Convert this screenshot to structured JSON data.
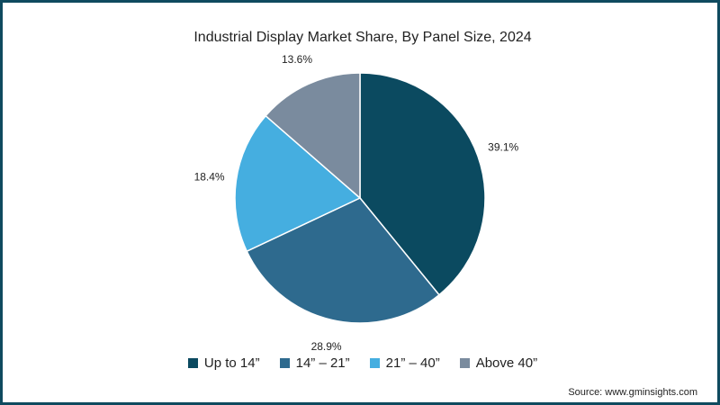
{
  "chart_data": {
    "type": "pie",
    "title": "Industrial Display Market Share, By Panel Size, 2024",
    "slices": [
      {
        "label": "Up to 14”",
        "value": 39.1,
        "value_label": "39.1%",
        "color": "#0b4a60"
      },
      {
        "label": "14” – 21”",
        "value": 28.9,
        "value_label": "28.9%",
        "color": "#2e6a8e"
      },
      {
        "label": "21” – 40”",
        "value": 18.4,
        "value_label": "18.4%",
        "color": "#45aee0"
      },
      {
        "label": "Above 40”",
        "value": 13.6,
        "value_label": "13.6%",
        "color": "#7a8b9e"
      }
    ],
    "legend_position": "bottom"
  },
  "source": "Source: www.gminsights.com"
}
